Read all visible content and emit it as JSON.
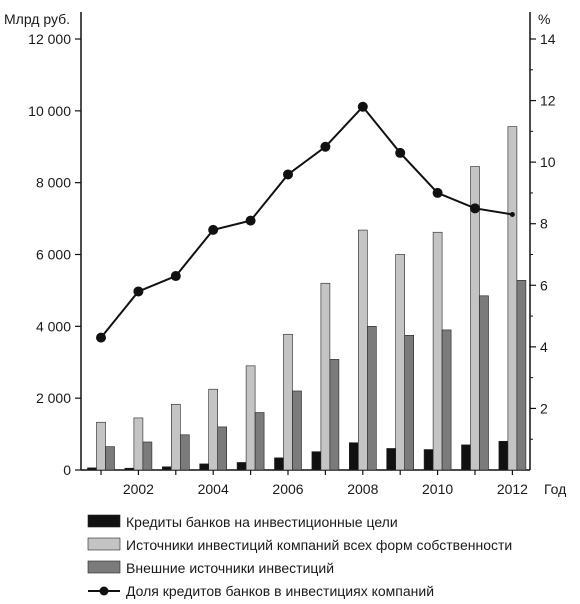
{
  "chart_data": {
    "type": "bar",
    "title": "",
    "ylabel_left": "Млрд руб.",
    "ylabel_right": "%",
    "xlabel": "Год",
    "ylim_left": [
      0,
      12000
    ],
    "ylim_right": [
      0,
      14
    ],
    "yticks_left": [
      "0",
      "2 000",
      "4 000",
      "6 000",
      "8 000",
      "10 000",
      "12 000"
    ],
    "yticks_right": [
      "2",
      "4",
      "6",
      "8",
      "10",
      "12",
      "14"
    ],
    "x": [
      2001,
      2002,
      2003,
      2004,
      2005,
      2006,
      2007,
      2008,
      2009,
      2010,
      2011,
      2012
    ],
    "xtick_labels": [
      "2002",
      "2004",
      "2006",
      "2008",
      "2010",
      "2012"
    ],
    "grid": false,
    "legend_position": "bottom",
    "series": [
      {
        "name": "Кредиты банков на инвестиционные цели",
        "type": "bar",
        "axis": "left",
        "color": "#111111",
        "values": [
          60,
          50,
          90,
          170,
          210,
          340,
          510,
          760,
          600,
          570,
          700,
          800
        ]
      },
      {
        "name": "Источники инвестиций компаний всех форм собственности",
        "type": "bar",
        "axis": "left",
        "color": "#c4c4c4",
        "values": [
          1330,
          1450,
          1830,
          2250,
          2900,
          3780,
          5200,
          6680,
          6000,
          6620,
          8450,
          9560
        ]
      },
      {
        "name": "Внешние источники инвестиций",
        "type": "bar",
        "axis": "left",
        "color": "#7b7b7b",
        "values": [
          650,
          780,
          980,
          1200,
          1600,
          2200,
          3080,
          4000,
          3750,
          3900,
          4850,
          5280
        ]
      },
      {
        "name": "Доля кредитов банков в инвестициях компаний",
        "type": "line",
        "axis": "right",
        "color": "#111111",
        "values": [
          4.3,
          5.8,
          6.3,
          7.8,
          8.1,
          9.6,
          10.5,
          11.8,
          10.3,
          9.0,
          8.5,
          8.3
        ]
      }
    ]
  }
}
